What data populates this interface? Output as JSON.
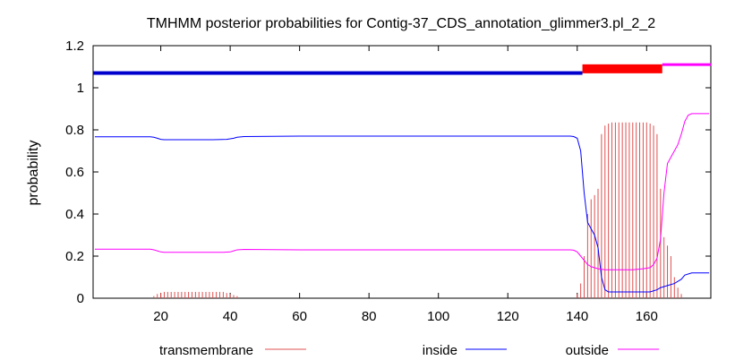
{
  "chart_data": {
    "type": "line",
    "title": "TMHMM posterior probabilities for Contig-37_CDS_annotation_glimmer3.pl_2_2",
    "xlabel": "",
    "ylabel": "probability",
    "xlim": [
      0.5,
      178.5
    ],
    "ylim": [
      0,
      1.2
    ],
    "x_ticks": [
      20,
      40,
      60,
      80,
      100,
      120,
      140,
      160
    ],
    "y_ticks": [
      0,
      0.2,
      0.4,
      0.6,
      0.8,
      1,
      1.2
    ],
    "y_tick_labels": [
      "0",
      "0.2",
      "0.4",
      "0.6",
      "0.8",
      "1",
      "1.2"
    ],
    "grid": false,
    "legend_position": "bottom",
    "colors": {
      "transmembrane": "#e05050",
      "inside": "#0000ff",
      "outside": "#ff00ff",
      "topology_inside": "#0000cc",
      "topology_tm": "#ff0000",
      "topology_outside": "#ff00ff"
    },
    "topology": [
      {
        "region": "inside",
        "start": 1,
        "end": 141,
        "y": 1.07
      },
      {
        "region": "transmembrane",
        "start": 142,
        "end": 164,
        "y": 1.09
      },
      {
        "region": "outside",
        "start": 165,
        "end": 178,
        "y": 1.11
      }
    ],
    "series": [
      {
        "name": "transmembrane",
        "style": "impulses",
        "points": [
          [
            18,
            0.01
          ],
          [
            19,
            0.02
          ],
          [
            20,
            0.025
          ],
          [
            21,
            0.03
          ],
          [
            22,
            0.03
          ],
          [
            23,
            0.03
          ],
          [
            24,
            0.03
          ],
          [
            25,
            0.03
          ],
          [
            26,
            0.03
          ],
          [
            27,
            0.03
          ],
          [
            28,
            0.03
          ],
          [
            29,
            0.03
          ],
          [
            30,
            0.03
          ],
          [
            31,
            0.03
          ],
          [
            32,
            0.03
          ],
          [
            33,
            0.03
          ],
          [
            34,
            0.03
          ],
          [
            35,
            0.03
          ],
          [
            36,
            0.03
          ],
          [
            37,
            0.03
          ],
          [
            38,
            0.03
          ],
          [
            39,
            0.025
          ],
          [
            40,
            0.02
          ],
          [
            41,
            0.015
          ],
          [
            42,
            0.01
          ],
          [
            140,
            0.02
          ],
          [
            141,
            0.07
          ],
          [
            142,
            0.2
          ],
          [
            143,
            0.4
          ],
          [
            144,
            0.47
          ],
          [
            145,
            0.49
          ],
          [
            146,
            0.52
          ],
          [
            147,
            0.78
          ],
          [
            148,
            0.82
          ],
          [
            149,
            0.83
          ],
          [
            150,
            0.835
          ],
          [
            151,
            0.835
          ],
          [
            152,
            0.835
          ],
          [
            153,
            0.835
          ],
          [
            154,
            0.835
          ],
          [
            155,
            0.835
          ],
          [
            156,
            0.835
          ],
          [
            157,
            0.835
          ],
          [
            158,
            0.835
          ],
          [
            159,
            0.835
          ],
          [
            160,
            0.835
          ],
          [
            161,
            0.83
          ],
          [
            162,
            0.82
          ],
          [
            163,
            0.78
          ],
          [
            164,
            0.52
          ],
          [
            165,
            0.29
          ],
          [
            166,
            0.25
          ],
          [
            167,
            0.2
          ],
          [
            168,
            0.1
          ],
          [
            169,
            0.05
          ],
          [
            170,
            0.02
          ]
        ]
      },
      {
        "name": "inside",
        "style": "line",
        "points": [
          [
            1,
            0.767
          ],
          [
            17,
            0.767
          ],
          [
            18,
            0.765
          ],
          [
            19,
            0.76
          ],
          [
            20,
            0.755
          ],
          [
            21,
            0.753
          ],
          [
            35,
            0.753
          ],
          [
            39,
            0.755
          ],
          [
            41,
            0.76
          ],
          [
            42,
            0.765
          ],
          [
            44,
            0.768
          ],
          [
            60,
            0.77
          ],
          [
            80,
            0.77
          ],
          [
            100,
            0.77
          ],
          [
            120,
            0.77
          ],
          [
            138,
            0.77
          ],
          [
            139,
            0.768
          ],
          [
            140,
            0.76
          ],
          [
            141,
            0.7
          ],
          [
            142,
            0.5
          ],
          [
            143,
            0.36
          ],
          [
            144,
            0.33
          ],
          [
            145,
            0.3
          ],
          [
            146,
            0.24
          ],
          [
            147,
            0.1
          ],
          [
            148,
            0.04
          ],
          [
            149,
            0.03
          ],
          [
            150,
            0.03
          ],
          [
            160,
            0.03
          ],
          [
            161,
            0.03
          ],
          [
            162,
            0.035
          ],
          [
            163,
            0.04
          ],
          [
            164,
            0.05
          ],
          [
            166,
            0.06
          ],
          [
            168,
            0.07
          ],
          [
            170,
            0.09
          ],
          [
            171,
            0.11
          ],
          [
            173,
            0.12
          ],
          [
            178,
            0.12
          ]
        ]
      },
      {
        "name": "outside",
        "style": "line",
        "points": [
          [
            1,
            0.233
          ],
          [
            17,
            0.233
          ],
          [
            18,
            0.23
          ],
          [
            19,
            0.225
          ],
          [
            20,
            0.22
          ],
          [
            21,
            0.218
          ],
          [
            38,
            0.218
          ],
          [
            40,
            0.22
          ],
          [
            41,
            0.225
          ],
          [
            42,
            0.23
          ],
          [
            44,
            0.232
          ],
          [
            60,
            0.23
          ],
          [
            80,
            0.23
          ],
          [
            100,
            0.23
          ],
          [
            120,
            0.23
          ],
          [
            138,
            0.23
          ],
          [
            139,
            0.228
          ],
          [
            140,
            0.22
          ],
          [
            141,
            0.2
          ],
          [
            142,
            0.18
          ],
          [
            143,
            0.16
          ],
          [
            144,
            0.15
          ],
          [
            146,
            0.14
          ],
          [
            148,
            0.135
          ],
          [
            150,
            0.135
          ],
          [
            156,
            0.135
          ],
          [
            159,
            0.14
          ],
          [
            161,
            0.145
          ],
          [
            162,
            0.16
          ],
          [
            163,
            0.19
          ],
          [
            164,
            0.28
          ],
          [
            165,
            0.5
          ],
          [
            166,
            0.64
          ],
          [
            167,
            0.67
          ],
          [
            168,
            0.7
          ],
          [
            169,
            0.73
          ],
          [
            170,
            0.78
          ],
          [
            171,
            0.84
          ],
          [
            172,
            0.87
          ],
          [
            173,
            0.877
          ],
          [
            178,
            0.877
          ]
        ]
      }
    ]
  }
}
